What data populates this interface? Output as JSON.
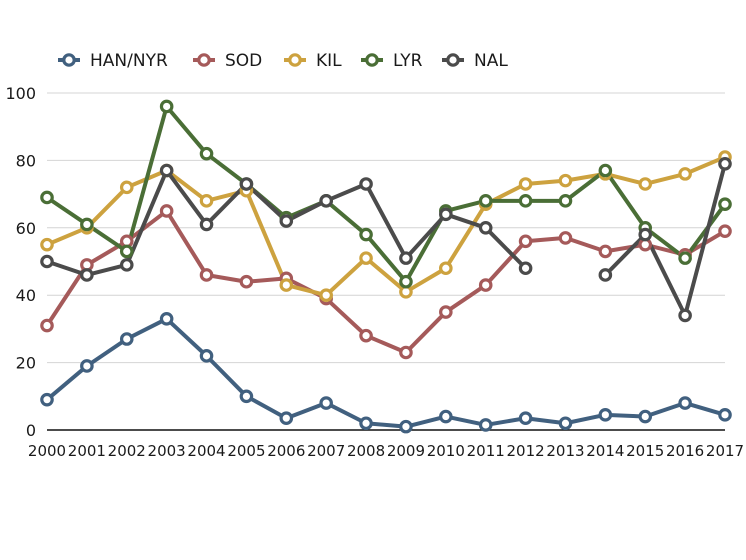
{
  "chart_data": {
    "type": "line",
    "title": "",
    "xlabel": "",
    "ylabel": "",
    "ylim": [
      0,
      100
    ],
    "yticks": [
      0,
      20,
      40,
      60,
      80,
      100
    ],
    "grid": true,
    "legend_position": "top",
    "x": [
      "2000",
      "2001",
      "2002",
      "2003",
      "2004",
      "2005",
      "2006",
      "2007",
      "2008",
      "2009",
      "2010",
      "2011",
      "2012",
      "2013",
      "2014",
      "2015",
      "2016",
      "2017"
    ],
    "series": [
      {
        "name": "HAN/NYR",
        "color": "#41607f",
        "values": [
          9,
          19,
          27,
          33,
          22,
          10,
          3.5,
          8,
          2,
          1,
          4,
          1.5,
          3.5,
          2,
          4.5,
          4,
          8,
          4.5
        ]
      },
      {
        "name": "SOD",
        "color": "#a55a5a",
        "values": [
          31,
          49,
          56,
          65,
          46,
          44,
          45,
          39,
          28,
          23,
          35,
          43,
          56,
          57,
          53,
          55,
          52,
          59
        ]
      },
      {
        "name": "KIL",
        "color": "#cda23f",
        "values": [
          55,
          60,
          72,
          77,
          68,
          71,
          43,
          40,
          51,
          41,
          48,
          67,
          73,
          74,
          76,
          73,
          76,
          81
        ]
      },
      {
        "name": "LYR",
        "color": "#4a6e36",
        "values": [
          69,
          61,
          53,
          96,
          82,
          73,
          63,
          68,
          58,
          44,
          65,
          68,
          68,
          68,
          77,
          60,
          51,
          67
        ]
      },
      {
        "name": "NAL",
        "color": "#4b4b4b",
        "values": [
          50,
          46,
          49,
          77,
          61,
          73,
          62,
          68,
          73,
          51,
          64,
          60,
          48,
          null,
          46,
          58,
          34,
          79
        ]
      }
    ]
  }
}
